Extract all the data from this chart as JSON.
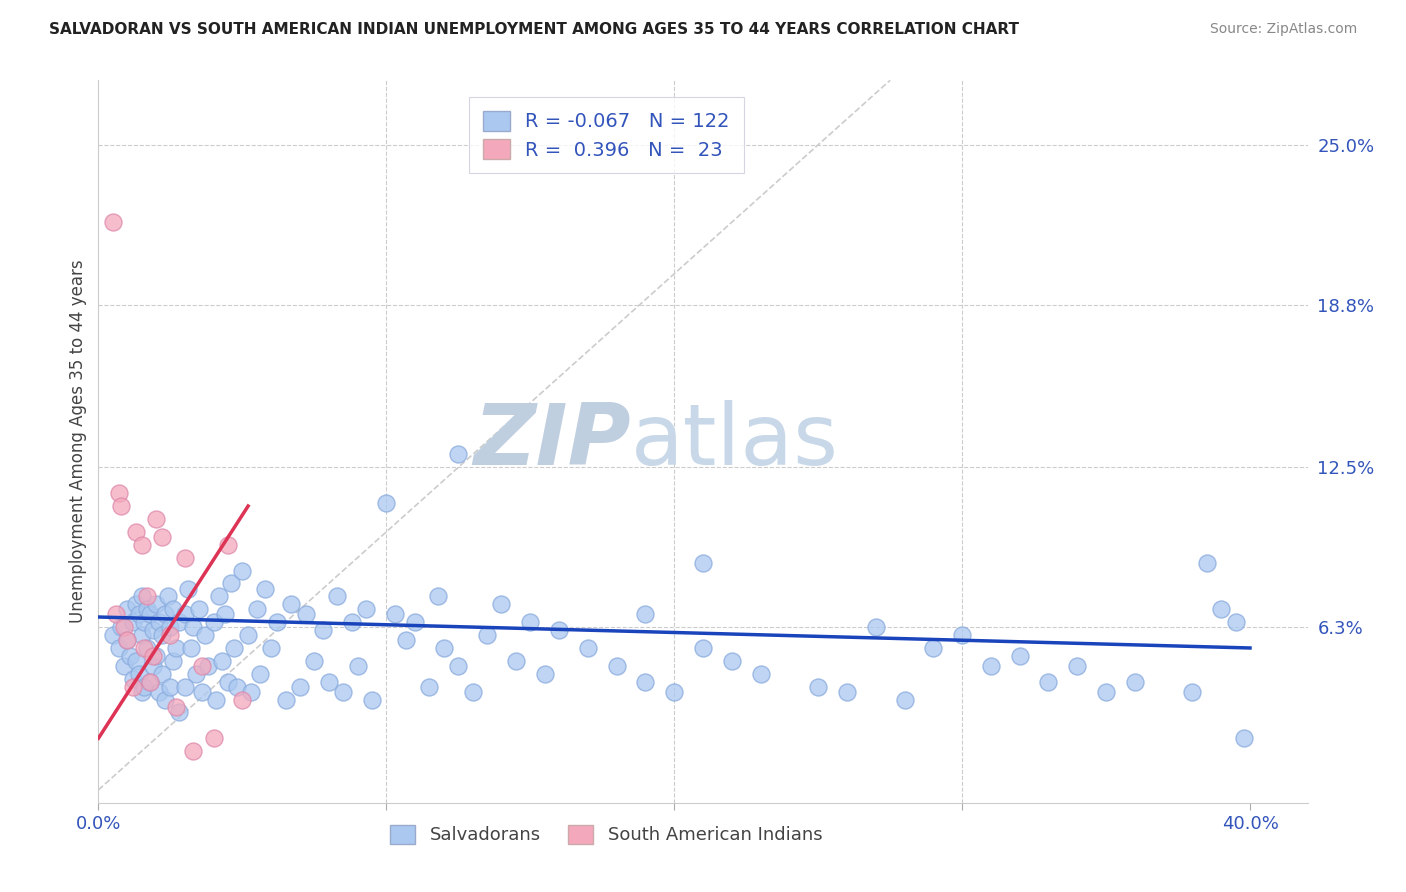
{
  "title": "SALVADORAN VS SOUTH AMERICAN INDIAN UNEMPLOYMENT AMONG AGES 35 TO 44 YEARS CORRELATION CHART",
  "source": "Source: ZipAtlas.com",
  "ylabel": "Unemployment Among Ages 35 to 44 years",
  "xlim": [
    0.0,
    0.42
  ],
  "ylim": [
    -0.005,
    0.275
  ],
  "xticks": [
    0.0,
    0.1,
    0.2,
    0.3,
    0.4
  ],
  "xticklabels": [
    "0.0%",
    "",
    "",
    "",
    "40.0%"
  ],
  "yticks_right": [
    0.063,
    0.125,
    0.188,
    0.25
  ],
  "yticklabels_right": [
    "6.3%",
    "12.5%",
    "18.8%",
    "25.0%"
  ],
  "blue_R": -0.067,
  "blue_N": 122,
  "pink_R": 0.396,
  "pink_N": 23,
  "blue_color": "#aac8f0",
  "pink_color": "#f4a8bc",
  "blue_line_color": "#1a44bb",
  "pink_line_color": "#dd3355",
  "diagonal_color": "#cccccc",
  "watermark_zip_color": "#c8d8e8",
  "watermark_atlas_color": "#c8d8e8",
  "legend_label_blue": "Salvadorans",
  "legend_label_pink": "South American Indians",
  "blue_x": [
    0.005,
    0.007,
    0.008,
    0.009,
    0.01,
    0.01,
    0.011,
    0.012,
    0.012,
    0.013,
    0.013,
    0.014,
    0.014,
    0.015,
    0.015,
    0.015,
    0.016,
    0.016,
    0.017,
    0.017,
    0.018,
    0.018,
    0.019,
    0.019,
    0.02,
    0.02,
    0.021,
    0.021,
    0.022,
    0.022,
    0.023,
    0.023,
    0.024,
    0.025,
    0.025,
    0.026,
    0.026,
    0.027,
    0.028,
    0.028,
    0.03,
    0.03,
    0.031,
    0.032,
    0.033,
    0.034,
    0.035,
    0.036,
    0.037,
    0.038,
    0.04,
    0.041,
    0.042,
    0.043,
    0.044,
    0.045,
    0.046,
    0.047,
    0.048,
    0.05,
    0.052,
    0.053,
    0.055,
    0.056,
    0.058,
    0.06,
    0.062,
    0.065,
    0.067,
    0.07,
    0.072,
    0.075,
    0.078,
    0.08,
    0.083,
    0.085,
    0.088,
    0.09,
    0.093,
    0.095,
    0.1,
    0.103,
    0.107,
    0.11,
    0.115,
    0.118,
    0.12,
    0.125,
    0.13,
    0.135,
    0.14,
    0.145,
    0.15,
    0.155,
    0.16,
    0.17,
    0.18,
    0.19,
    0.2,
    0.21,
    0.22,
    0.23,
    0.25,
    0.26,
    0.28,
    0.3,
    0.32,
    0.34,
    0.36,
    0.38,
    0.385,
    0.39,
    0.395,
    0.398,
    0.125,
    0.19,
    0.21,
    0.27,
    0.29,
    0.31,
    0.33,
    0.35
  ],
  "blue_y": [
    0.06,
    0.055,
    0.063,
    0.048,
    0.058,
    0.07,
    0.052,
    0.065,
    0.043,
    0.072,
    0.05,
    0.068,
    0.045,
    0.075,
    0.06,
    0.038,
    0.065,
    0.04,
    0.07,
    0.055,
    0.068,
    0.042,
    0.062,
    0.048,
    0.072,
    0.052,
    0.065,
    0.038,
    0.06,
    0.045,
    0.068,
    0.035,
    0.075,
    0.063,
    0.04,
    0.07,
    0.05,
    0.055,
    0.065,
    0.03,
    0.068,
    0.04,
    0.078,
    0.055,
    0.063,
    0.045,
    0.07,
    0.038,
    0.06,
    0.048,
    0.065,
    0.035,
    0.075,
    0.05,
    0.068,
    0.042,
    0.08,
    0.055,
    0.04,
    0.085,
    0.06,
    0.038,
    0.07,
    0.045,
    0.078,
    0.055,
    0.065,
    0.035,
    0.072,
    0.04,
    0.068,
    0.05,
    0.062,
    0.042,
    0.075,
    0.038,
    0.065,
    0.048,
    0.07,
    0.035,
    0.111,
    0.068,
    0.058,
    0.065,
    0.04,
    0.075,
    0.055,
    0.048,
    0.038,
    0.06,
    0.072,
    0.05,
    0.065,
    0.045,
    0.062,
    0.055,
    0.048,
    0.042,
    0.038,
    0.055,
    0.05,
    0.045,
    0.04,
    0.038,
    0.035,
    0.06,
    0.052,
    0.048,
    0.042,
    0.038,
    0.088,
    0.07,
    0.065,
    0.02,
    0.13,
    0.068,
    0.088,
    0.063,
    0.055,
    0.048,
    0.042,
    0.038
  ],
  "pink_x": [
    0.005,
    0.006,
    0.007,
    0.008,
    0.009,
    0.01,
    0.012,
    0.013,
    0.015,
    0.016,
    0.018,
    0.02,
    0.022,
    0.025,
    0.027,
    0.03,
    0.033,
    0.036,
    0.04,
    0.017,
    0.019,
    0.045,
    0.05
  ],
  "pink_y": [
    0.22,
    0.068,
    0.115,
    0.11,
    0.063,
    0.058,
    0.04,
    0.1,
    0.095,
    0.055,
    0.042,
    0.105,
    0.098,
    0.06,
    0.032,
    0.09,
    0.015,
    0.048,
    0.02,
    0.075,
    0.052,
    0.095,
    0.035
  ],
  "blue_trend_x": [
    0.0,
    0.4
  ],
  "blue_trend_y": [
    0.067,
    0.055
  ],
  "pink_trend_x": [
    0.0,
    0.052
  ],
  "pink_trend_y": [
    0.02,
    0.11
  ]
}
